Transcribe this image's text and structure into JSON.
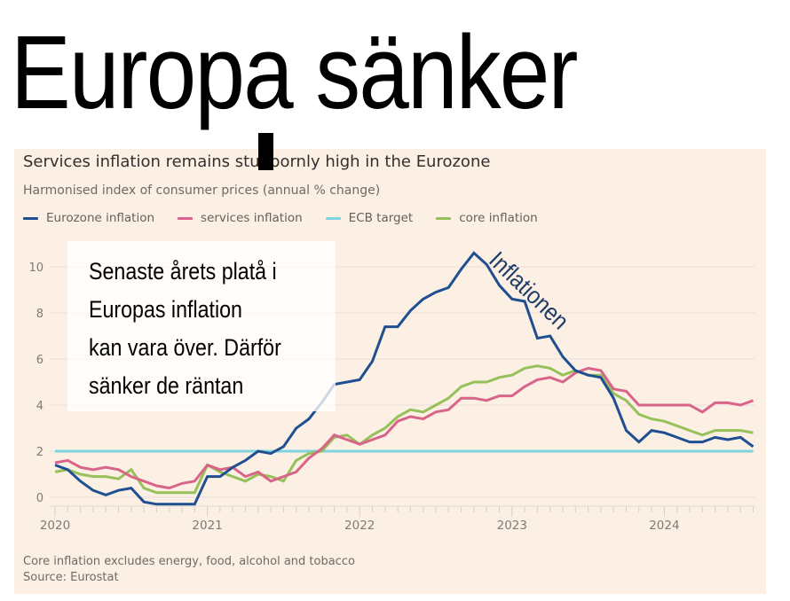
{
  "headline": "Europa sänker",
  "overlay_text_lines": [
    "Senaste årets platå i",
    "Europas inflation",
    "kan vara över. Därför",
    "sänker de räntan"
  ],
  "annotation": "Inflationen",
  "footnote": {
    "note": "Core inflation excludes energy, food, alcohol and tobacco",
    "source": "Source: Eurostat"
  },
  "colors": {
    "background_panel": "#fcefe4",
    "eurozone": "#1f4f91",
    "services": "#d9648a",
    "ecb_target": "#7fd3e0",
    "core": "#96c15a",
    "grid": "#ebe1d9",
    "axis_text": "#807a76"
  },
  "chart_data": {
    "type": "line",
    "title": "Services inflation remains stubbornly high in the Eurozone",
    "subtitle": "Harmonised index of consumer prices (annual % change)",
    "xlabel": "",
    "ylabel": "",
    "x_start": "2020-01",
    "x_frequency": "monthly",
    "x_ticks": [
      "2020",
      "2021",
      "2022",
      "2023",
      "2024"
    ],
    "y_ticks": [
      0,
      2,
      4,
      6,
      8,
      10
    ],
    "ylim": [
      -0.6,
      11
    ],
    "grid": true,
    "legend_position": "top-left",
    "series": [
      {
        "name": "Eurozone inflation",
        "key": "eurozone",
        "values": [
          1.4,
          1.2,
          0.7,
          0.3,
          0.1,
          0.3,
          0.4,
          -0.2,
          -0.3,
          -0.3,
          -0.3,
          -0.3,
          0.9,
          0.9,
          1.3,
          1.6,
          2.0,
          1.9,
          2.2,
          3.0,
          3.4,
          4.1,
          4.9,
          5.0,
          5.1,
          5.9,
          7.4,
          7.4,
          8.1,
          8.6,
          8.9,
          9.1,
          9.9,
          10.6,
          10.1,
          9.2,
          8.6,
          8.5,
          6.9,
          7.0,
          6.1,
          5.5,
          5.3,
          5.2,
          4.3,
          2.9,
          2.4,
          2.9,
          2.8,
          2.6,
          2.4,
          2.4,
          2.6,
          2.5,
          2.6,
          2.2
        ]
      },
      {
        "name": "services inflation",
        "key": "services",
        "values": [
          1.5,
          1.6,
          1.3,
          1.2,
          1.3,
          1.2,
          0.9,
          0.7,
          0.5,
          0.4,
          0.6,
          0.7,
          1.4,
          1.2,
          1.3,
          0.9,
          1.1,
          0.7,
          0.9,
          1.1,
          1.7,
          2.1,
          2.7,
          2.5,
          2.3,
          2.5,
          2.7,
          3.3,
          3.5,
          3.4,
          3.7,
          3.8,
          4.3,
          4.3,
          4.2,
          4.4,
          4.4,
          4.8,
          5.1,
          5.2,
          5.0,
          5.4,
          5.6,
          5.5,
          4.7,
          4.6,
          4.0,
          4.0,
          4.0,
          4.0,
          4.0,
          3.7,
          4.1,
          4.1,
          4.0,
          4.2
        ]
      },
      {
        "name": "ECB target",
        "key": "ecb_target",
        "values": [
          2,
          2,
          2,
          2,
          2,
          2,
          2,
          2,
          2,
          2,
          2,
          2,
          2,
          2,
          2,
          2,
          2,
          2,
          2,
          2,
          2,
          2,
          2,
          2,
          2,
          2,
          2,
          2,
          2,
          2,
          2,
          2,
          2,
          2,
          2,
          2,
          2,
          2,
          2,
          2,
          2,
          2,
          2,
          2,
          2,
          2,
          2,
          2,
          2,
          2,
          2,
          2,
          2,
          2,
          2,
          2
        ]
      },
      {
        "name": "core inflation",
        "key": "core",
        "values": [
          1.1,
          1.2,
          1.0,
          0.9,
          0.9,
          0.8,
          1.2,
          0.4,
          0.2,
          0.2,
          0.2,
          0.2,
          1.4,
          1.1,
          0.9,
          0.7,
          1.0,
          0.9,
          0.7,
          1.6,
          1.9,
          2.0,
          2.6,
          2.7,
          2.3,
          2.7,
          3.0,
          3.5,
          3.8,
          3.7,
          4.0,
          4.3,
          4.8,
          5.0,
          5.0,
          5.2,
          5.3,
          5.6,
          5.7,
          5.6,
          5.3,
          5.5,
          5.3,
          5.3,
          4.5,
          4.2,
          3.6,
          3.4,
          3.3,
          3.1,
          2.9,
          2.7,
          2.9,
          2.9,
          2.9,
          2.8
        ]
      }
    ]
  }
}
